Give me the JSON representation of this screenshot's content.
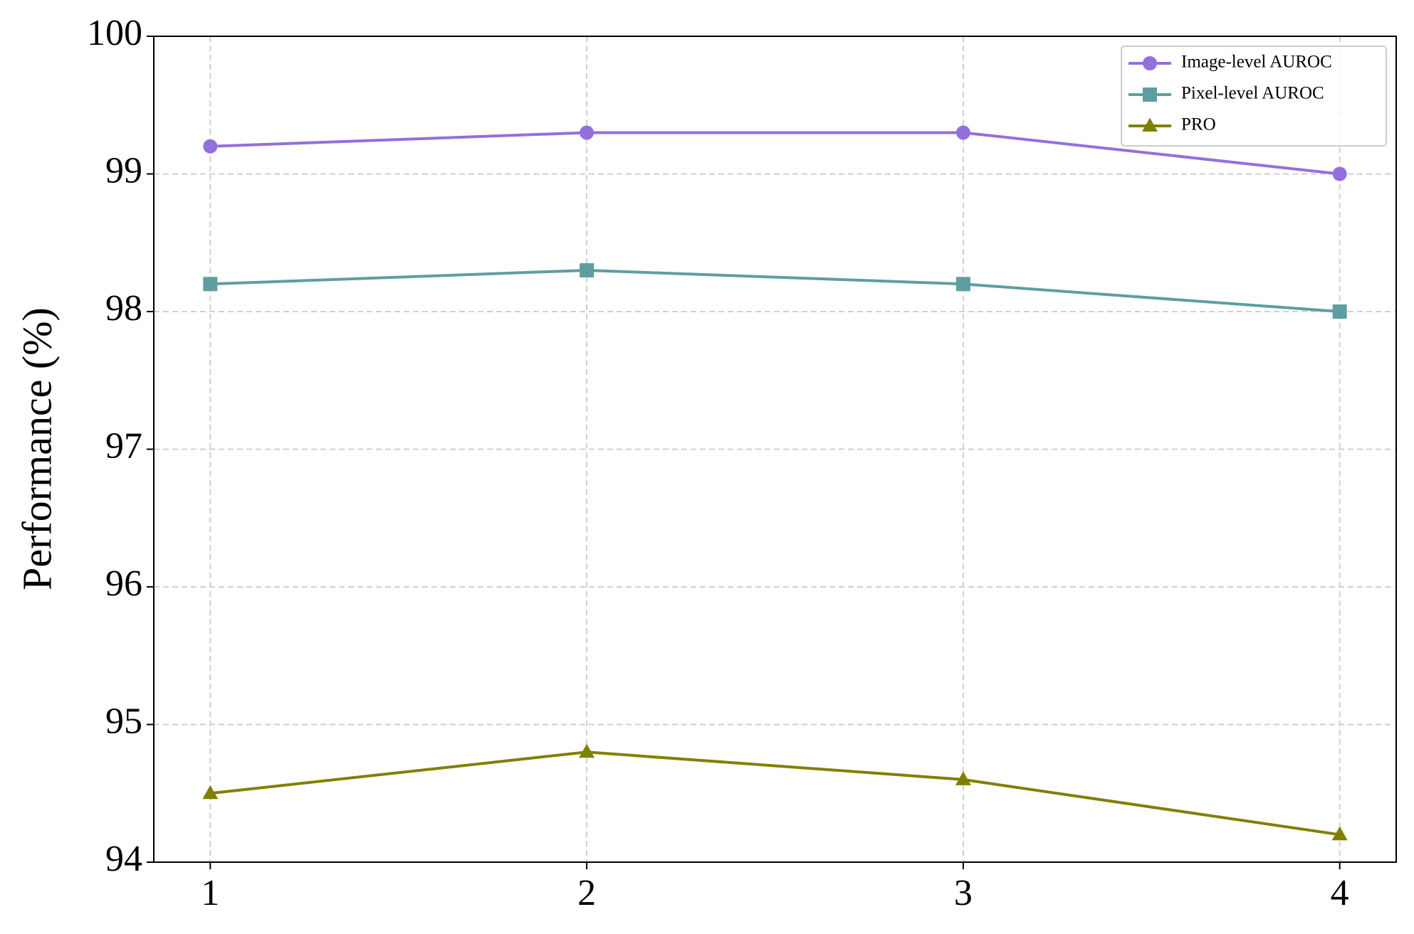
{
  "chart_data": {
    "type": "line",
    "y_label": "Performance (%)",
    "x": [
      1,
      2,
      3,
      4
    ],
    "xlim": [
      0.85,
      4.15
    ],
    "xticks": [
      1,
      2,
      3,
      4
    ],
    "ylim": [
      94,
      100
    ],
    "yticks": [
      94,
      95,
      96,
      97,
      98,
      99,
      100
    ],
    "grid": true,
    "legend": "upper right",
    "series": [
      {
        "name": "Image-level AUROC",
        "color": "#9370db",
        "marker": "circle",
        "values": [
          99.2,
          99.3,
          99.3,
          99.0
        ]
      },
      {
        "name": "Pixel-level AUROC",
        "color": "#5f9ea0",
        "marker": "square",
        "values": [
          98.2,
          98.3,
          98.2,
          98.0
        ]
      },
      {
        "name": "PRO",
        "color": "#808000",
        "marker": "triangle",
        "values": [
          94.5,
          94.8,
          94.6,
          94.2
        ]
      }
    ]
  }
}
